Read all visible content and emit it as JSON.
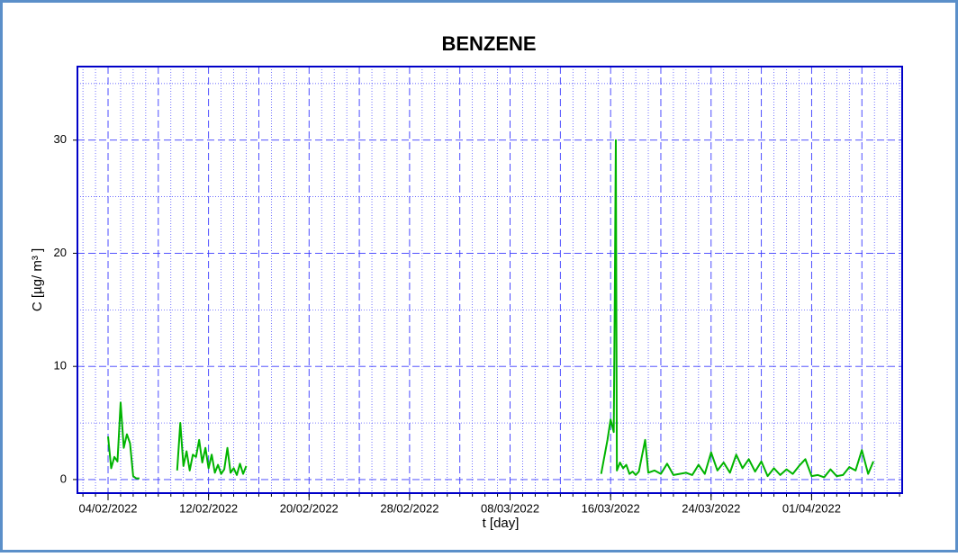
{
  "chart_data": {
    "type": "line",
    "title": "BENZENE",
    "x_label": "t [day]",
    "y_label": "C [µg/ m³ ]",
    "color": "#00b400",
    "grid": true,
    "xlim": [
      "2022-02-01T13:30",
      "2022-04-08T05:00"
    ],
    "xticks": [
      {
        "value": "2022-02-04T00:00",
        "label": "04/02/2022"
      },
      {
        "value": "2022-02-12T00:00",
        "label": "12/02/2022"
      },
      {
        "value": "2022-02-20T00:00",
        "label": "20/02/2022"
      },
      {
        "value": "2022-02-28T00:00",
        "label": "28/02/2022"
      },
      {
        "value": "2022-03-08T00:00",
        "label": "08/03/2022"
      },
      {
        "value": "2022-03-16T00:00",
        "label": "16/03/2022"
      },
      {
        "value": "2022-03-24T00:00",
        "label": "24/03/2022"
      },
      {
        "value": "2022-04-01T00:00",
        "label": "01/04/2022"
      }
    ],
    "xminor_ticks": [
      "2022-02-02T00:00",
      "2022-02-03T00:00",
      "2022-02-04T00:00",
      "2022-02-05T00:00",
      "2022-02-06T00:00",
      "2022-02-07T00:00",
      "2022-02-08T00:00",
      "2022-02-09T00:00",
      "2022-02-10T00:00",
      "2022-02-11T00:00",
      "2022-02-12T00:00",
      "2022-02-13T00:00",
      "2022-02-14T00:00",
      "2022-02-15T00:00",
      "2022-02-16T00:00",
      "2022-02-17T00:00",
      "2022-02-18T00:00",
      "2022-02-19T00:00",
      "2022-02-20T00:00",
      "2022-02-21T00:00",
      "2022-02-22T00:00",
      "2022-02-23T00:00",
      "2022-02-24T00:00",
      "2022-02-25T00:00",
      "2022-02-26T00:00",
      "2022-02-27T00:00",
      "2022-02-28T00:00",
      "2022-03-01T00:00",
      "2022-03-02T00:00",
      "2022-03-03T00:00",
      "2022-03-04T00:00",
      "2022-03-05T00:00",
      "2022-03-06T00:00",
      "2022-03-07T00:00",
      "2022-03-08T00:00",
      "2022-03-09T00:00",
      "2022-03-10T00:00",
      "2022-03-11T00:00",
      "2022-03-12T00:00",
      "2022-03-13T00:00",
      "2022-03-14T00:00",
      "2022-03-15T00:00",
      "2022-03-16T00:00",
      "2022-03-17T00:00",
      "2022-03-18T00:00",
      "2022-03-19T00:00",
      "2022-03-20T00:00",
      "2022-03-21T00:00",
      "2022-03-22T00:00",
      "2022-03-23T00:00",
      "2022-03-24T00:00",
      "2022-03-25T00:00",
      "2022-03-26T00:00",
      "2022-03-27T00:00",
      "2022-03-28T00:00",
      "2022-03-29T00:00",
      "2022-03-30T00:00",
      "2022-03-31T00:00",
      "2022-04-01T00:00",
      "2022-04-02T00:00",
      "2022-04-03T00:00",
      "2022-04-04T00:00",
      "2022-04-05T00:00",
      "2022-04-06T00:00",
      "2022-04-07T00:00",
      "2022-04-08T00:00"
    ],
    "ylim": [
      -1.2,
      36.5
    ],
    "yticks": [
      0,
      10,
      20,
      30
    ],
    "yminor_ticks": [
      5,
      15,
      25,
      35
    ],
    "x": [
      "2022-02-04T00:00",
      "2022-02-04T06:00",
      "2022-02-04T12:00",
      "2022-02-04T18:00",
      "2022-02-05T00:00",
      "2022-02-05T06:00",
      "2022-02-05T12:00",
      "2022-02-05T18:00",
      "2022-02-06T00:00",
      "2022-02-06T06:00",
      "2022-02-06T12:00",
      "2022-02-08T00:00",
      "2022-02-09T12:00",
      "2022-02-09T18:00",
      "2022-02-10T00:00",
      "2022-02-10T06:00",
      "2022-02-10T12:00",
      "2022-02-10T18:00",
      "2022-02-11T00:00",
      "2022-02-11T06:00",
      "2022-02-11T12:00",
      "2022-02-11T18:00",
      "2022-02-12T00:00",
      "2022-02-12T06:00",
      "2022-02-12T12:00",
      "2022-02-12T18:00",
      "2022-02-13T00:00",
      "2022-02-13T06:00",
      "2022-02-13T12:00",
      "2022-02-13T18:00",
      "2022-02-14T00:00",
      "2022-02-14T06:00",
      "2022-02-14T12:00",
      "2022-02-14T18:00",
      "2022-02-15T00:00",
      "2022-03-01T00:00",
      "2022-03-15T06:00",
      "2022-03-15T12:00",
      "2022-03-15T18:00",
      "2022-03-16T00:00",
      "2022-03-16T06:00",
      "2022-03-16T08:00",
      "2022-03-16T10:00",
      "2022-03-16T12:00",
      "2022-03-16T18:00",
      "2022-03-17T00:00",
      "2022-03-17T06:00",
      "2022-03-17T12:00",
      "2022-03-17T18:00",
      "2022-03-18T00:00",
      "2022-03-18T06:00",
      "2022-03-18T18:00",
      "2022-03-19T00:00",
      "2022-03-19T12:00",
      "2022-03-20T00:00",
      "2022-03-20T12:00",
      "2022-03-21T00:00",
      "2022-03-21T12:00",
      "2022-03-22T00:00",
      "2022-03-22T12:00",
      "2022-03-23T00:00",
      "2022-03-23T12:00",
      "2022-03-24T00:00",
      "2022-03-24T12:00",
      "2022-03-25T00:00",
      "2022-03-25T12:00",
      "2022-03-26T00:00",
      "2022-03-26T12:00",
      "2022-03-27T00:00",
      "2022-03-27T12:00",
      "2022-03-28T00:00",
      "2022-03-28T12:00",
      "2022-03-29T00:00",
      "2022-03-29T12:00",
      "2022-03-30T00:00",
      "2022-03-30T12:00",
      "2022-03-31T00:00",
      "2022-03-31T12:00",
      "2022-04-01T00:00",
      "2022-04-01T12:00",
      "2022-04-02T00:00",
      "2022-04-02T12:00",
      "2022-04-03T00:00",
      "2022-04-03T12:00",
      "2022-04-04T00:00",
      "2022-04-04T12:00",
      "2022-04-05T00:00",
      "2022-04-05T12:00",
      "2022-04-05T22:00"
    ],
    "values": [
      3.8,
      1.0,
      2.0,
      1.6,
      6.8,
      2.8,
      4.0,
      3.2,
      0.3,
      0.1,
      0.1,
      null,
      0.8,
      5.0,
      1.2,
      2.5,
      0.8,
      2.2,
      2.0,
      3.5,
      1.5,
      2.8,
      1.0,
      2.2,
      0.6,
      1.3,
      0.5,
      0.9,
      2.8,
      0.6,
      1.0,
      0.4,
      1.4,
      0.5,
      1.2,
      null,
      0.5,
      2.0,
      3.5,
      5.3,
      4.2,
      16,
      30,
      0.8,
      1.5,
      1.0,
      1.3,
      0.5,
      0.7,
      0.4,
      0.7,
      3.5,
      0.6,
      0.8,
      0.5,
      1.4,
      0.4,
      0.5,
      0.6,
      0.4,
      1.3,
      0.5,
      2.4,
      0.8,
      1.5,
      0.6,
      2.2,
      1.0,
      1.8,
      0.7,
      1.6,
      0.3,
      1.0,
      0.4,
      0.9,
      0.5,
      1.2,
      1.8,
      0.3,
      0.4,
      0.2,
      0.9,
      0.3,
      0.4,
      1.1,
      0.8,
      2.6,
      0.5,
      1.6
    ]
  }
}
